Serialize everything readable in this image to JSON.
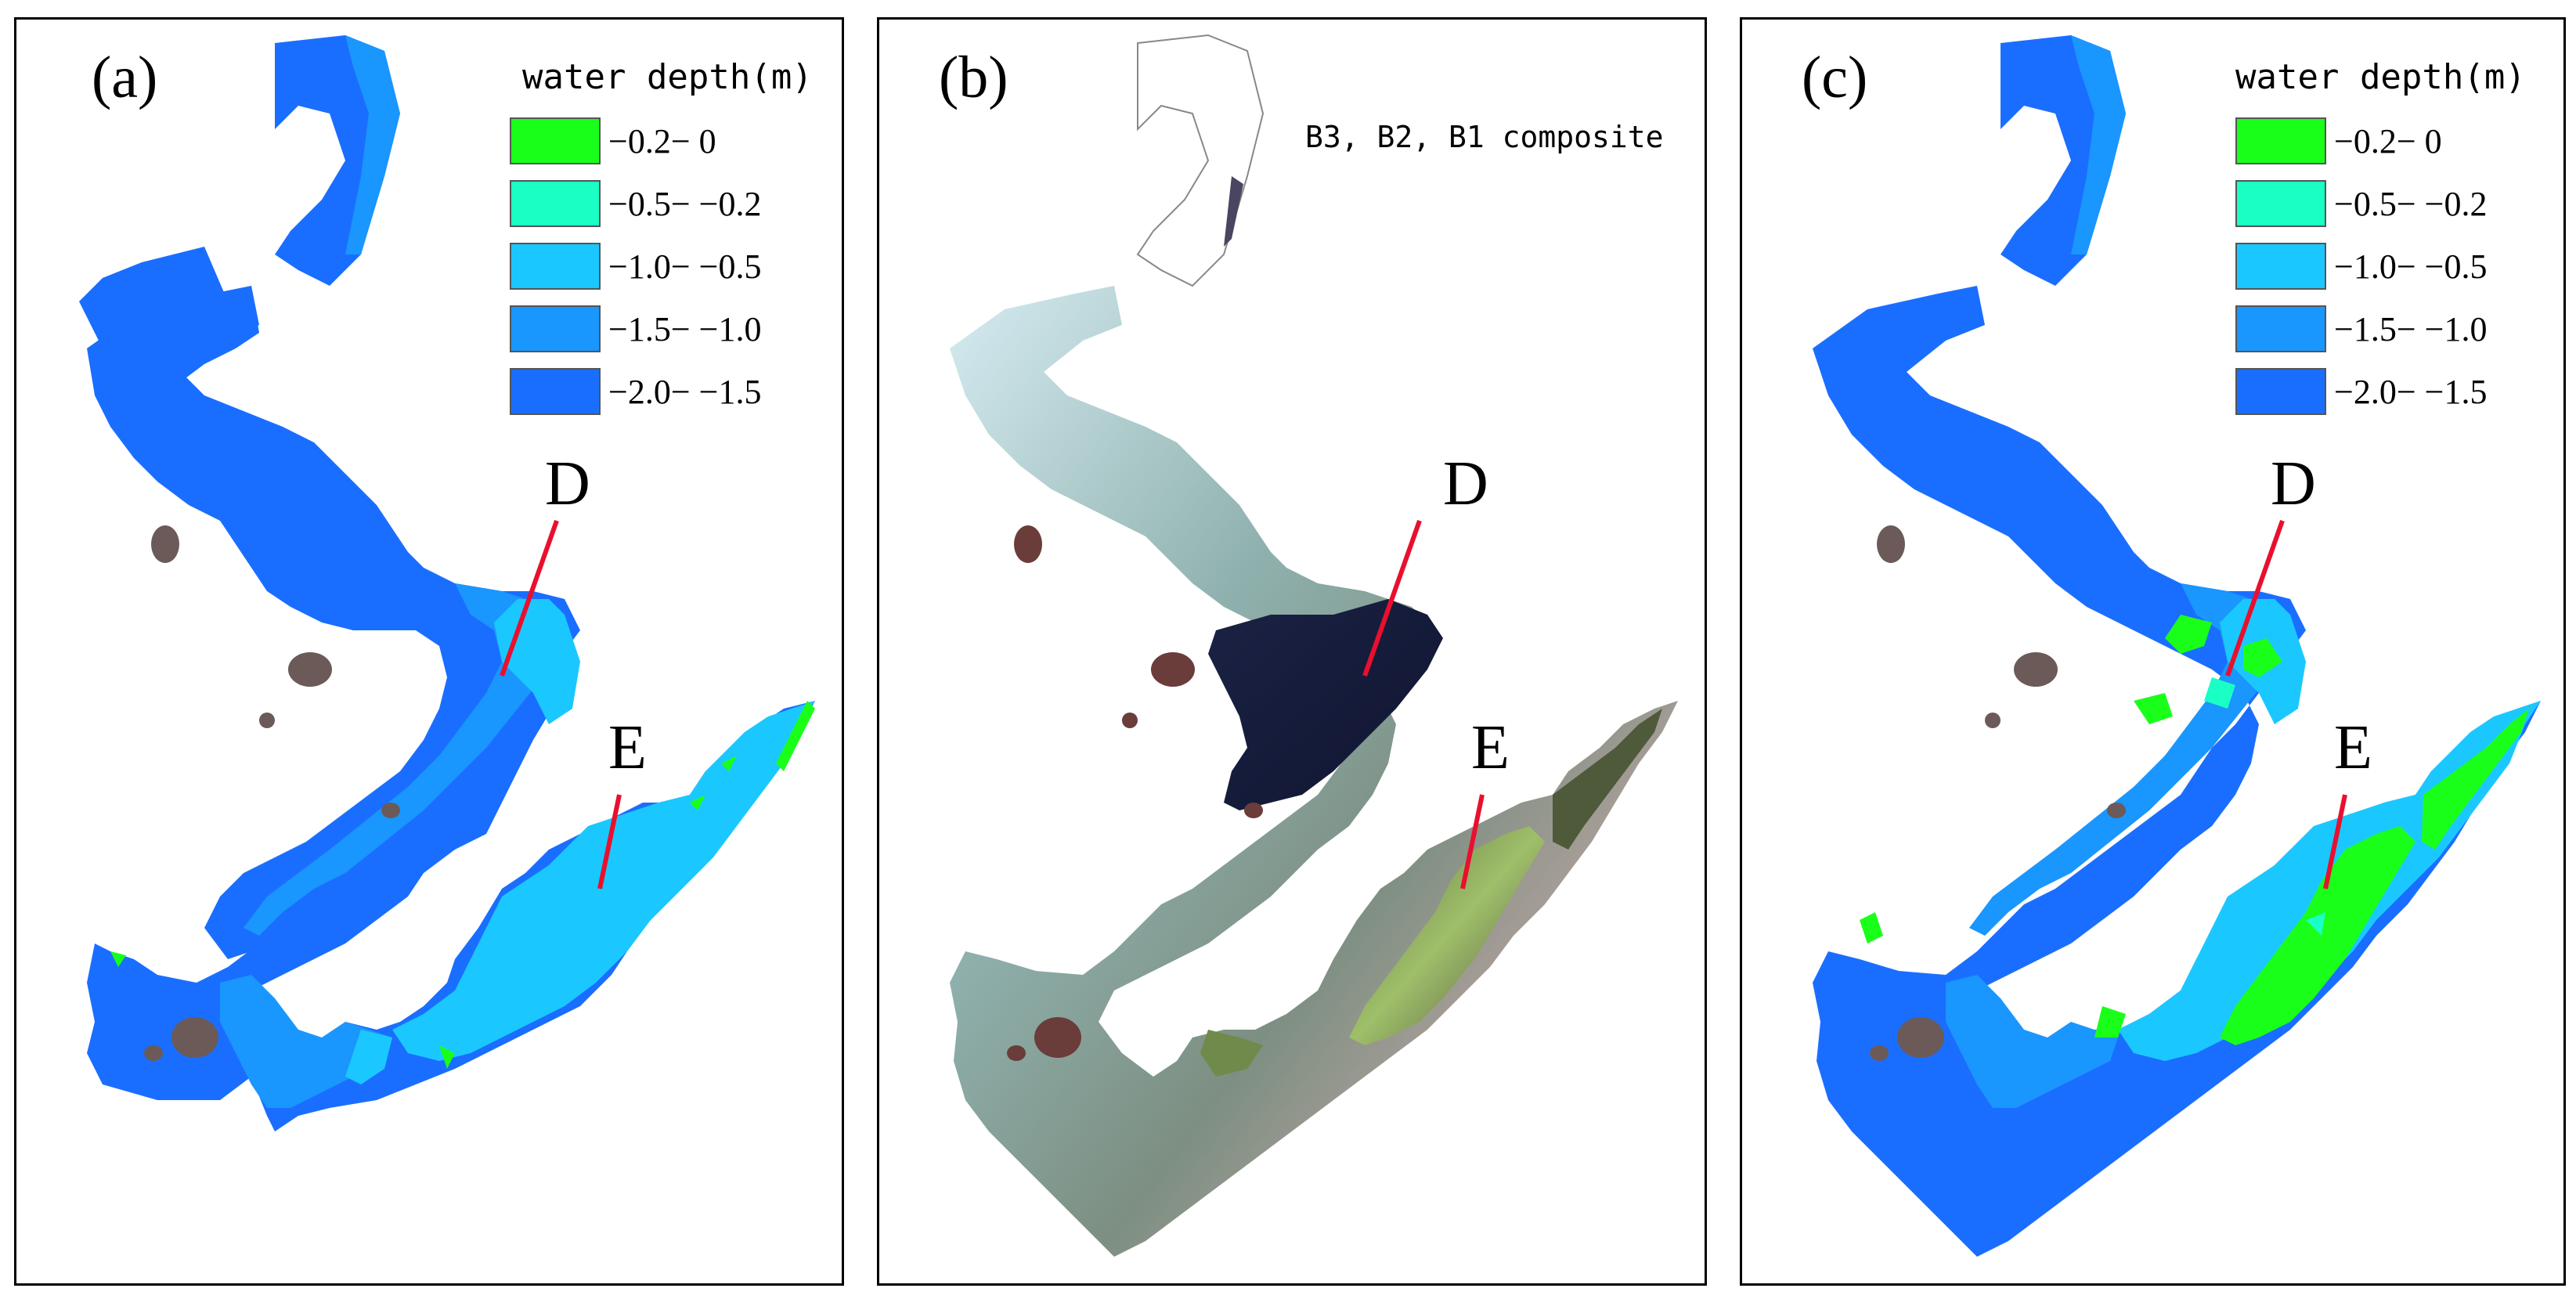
{
  "panels": {
    "a": {
      "label": "(a)",
      "legend_title": "water depth(m)",
      "marker_d": "D",
      "marker_e": "E"
    },
    "b": {
      "label": "(b)",
      "composite_label": "B3, B2, B1 composite",
      "marker_d": "D",
      "marker_e": "E"
    },
    "c": {
      "label": "(c)",
      "legend_title": "water depth(m)",
      "marker_d": "D",
      "marker_e": "E"
    }
  },
  "legend": {
    "classes": [
      {
        "label": "−0.2− 0",
        "color": "#1aff1a"
      },
      {
        "label": "−0.5− −0.2",
        "color": "#1affc4"
      },
      {
        "label": "−1.0− −0.5",
        "color": "#1ac8ff"
      },
      {
        "label": "−1.5− −1.0",
        "color": "#1a96ff"
      },
      {
        "label": "−2.0− −1.5",
        "color": "#1a6eff"
      }
    ]
  },
  "colors": {
    "marker_line": "#e8102e",
    "frame": "#000000",
    "island": "#6b5a58"
  }
}
